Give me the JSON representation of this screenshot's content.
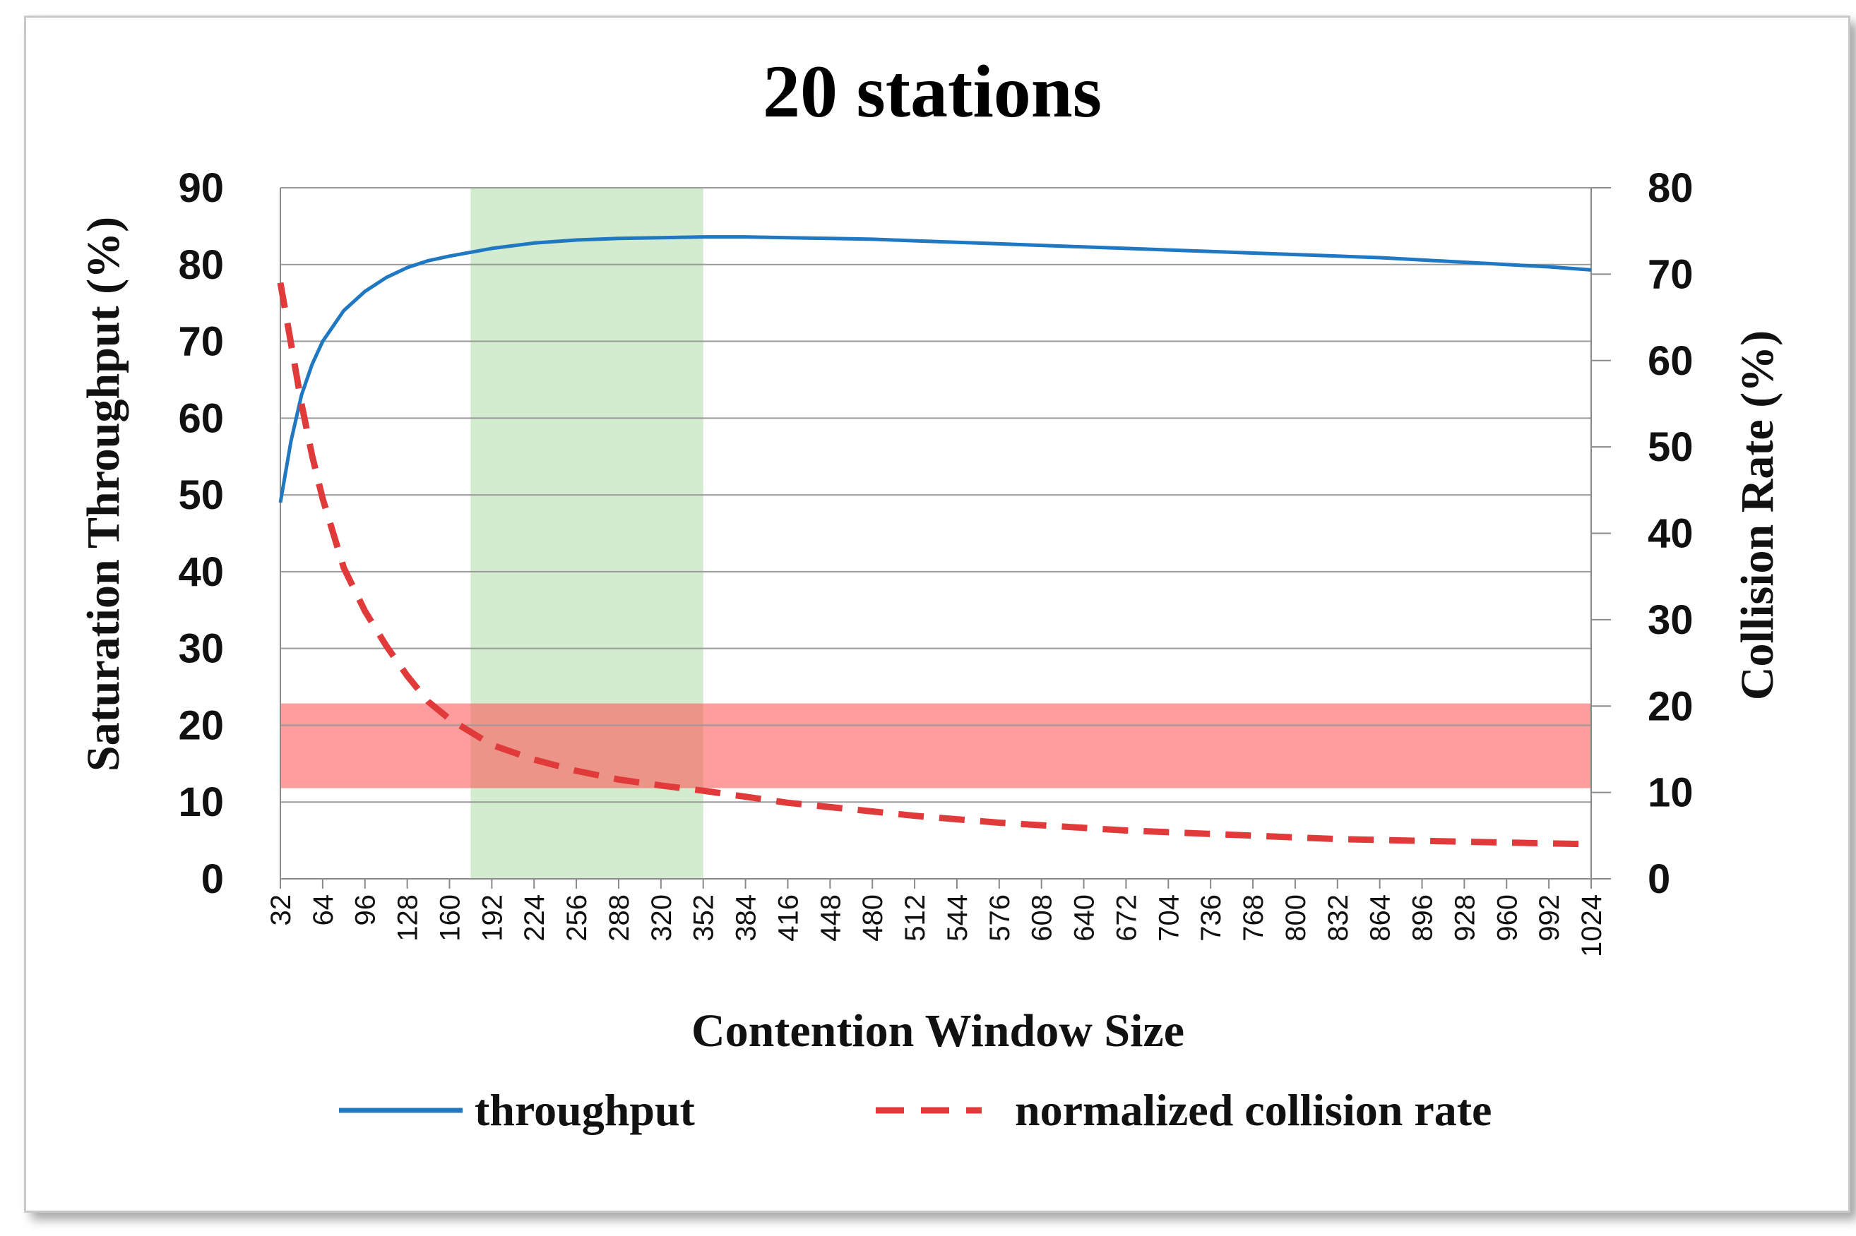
{
  "chart_data": {
    "type": "line",
    "title": "20 stations",
    "xlabel": "Contention Window Size",
    "ylabel_left": "Saturation Throughput (%)",
    "ylabel_right": "Collision Rate (%)",
    "x_ticks": [
      32,
      64,
      96,
      128,
      160,
      192,
      224,
      256,
      288,
      320,
      352,
      384,
      416,
      448,
      480,
      512,
      544,
      576,
      608,
      640,
      672,
      704,
      736,
      768,
      800,
      832,
      864,
      896,
      928,
      960,
      992,
      1024
    ],
    "xlim": [
      32,
      1024
    ],
    "ylim_left": [
      0,
      90
    ],
    "ylim_right": [
      0,
      80
    ],
    "y_ticks_left": [
      0,
      10,
      20,
      30,
      40,
      50,
      60,
      70,
      80,
      90
    ],
    "y_ticks_right": [
      0,
      10,
      20,
      30,
      40,
      50,
      60,
      70,
      80
    ],
    "grid": true,
    "legend_position": "bottom",
    "series": [
      {
        "name": "throughput",
        "axis": "left",
        "color": "#1f78c1",
        "style": "solid",
        "x": [
          32,
          40,
          48,
          56,
          64,
          80,
          96,
          112,
          128,
          144,
          160,
          176,
          192,
          224,
          256,
          288,
          320,
          352,
          384,
          416,
          448,
          480,
          512,
          544,
          576,
          608,
          640,
          672,
          704,
          736,
          768,
          800,
          832,
          864,
          896,
          928,
          960,
          992,
          1024
        ],
        "y": [
          49,
          57,
          63,
          67,
          70,
          74,
          76.5,
          78.3,
          79.6,
          80.5,
          81.1,
          81.6,
          82.1,
          82.8,
          83.2,
          83.4,
          83.5,
          83.6,
          83.6,
          83.5,
          83.4,
          83.3,
          83.1,
          82.9,
          82.7,
          82.5,
          82.3,
          82.1,
          81.9,
          81.7,
          81.5,
          81.3,
          81.1,
          80.9,
          80.6,
          80.3,
          80.0,
          79.7,
          79.3
        ]
      },
      {
        "name": "normalized collision rate",
        "axis": "right",
        "color": "#e03a3a",
        "style": "dashed",
        "x": [
          32,
          40,
          48,
          56,
          64,
          80,
          96,
          112,
          128,
          144,
          160,
          176,
          192,
          224,
          256,
          288,
          320,
          352,
          384,
          416,
          448,
          480,
          512,
          544,
          576,
          608,
          640,
          672,
          704,
          736,
          768,
          800,
          832,
          864,
          896,
          928,
          960,
          992,
          1024
        ],
        "y": [
          69,
          62,
          55,
          49,
          44,
          36,
          31,
          27,
          23.5,
          20.5,
          18.5,
          17,
          15.5,
          13.8,
          12.5,
          11.5,
          10.8,
          10.2,
          9.5,
          8.8,
          8.3,
          7.8,
          7.3,
          6.9,
          6.5,
          6.2,
          5.9,
          5.6,
          5.4,
          5.2,
          5.0,
          4.8,
          4.6,
          4.5,
          4.4,
          4.3,
          4.2,
          4.1,
          4.0
        ]
      }
    ],
    "highlights": [
      {
        "kind": "x-band",
        "from": 176,
        "to": 352,
        "color": "#a8d8a0",
        "opacity": 0.5
      },
      {
        "kind": "y-band",
        "axis": "right",
        "from": 10.5,
        "to": 20.3,
        "color": "#ff5a5a",
        "opacity": 0.6
      }
    ]
  }
}
